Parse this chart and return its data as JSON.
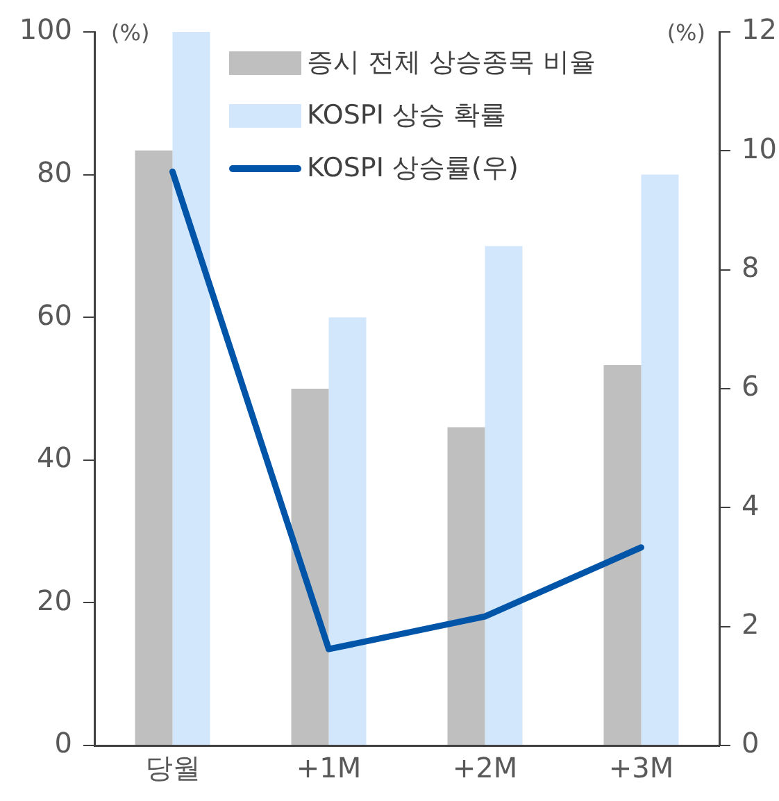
{
  "chart_data": {
    "type": "bar",
    "ylabel": "(%)",
    "y2label": "(%)",
    "categories": [
      "당월",
      "+1M",
      "+2M",
      "+3M"
    ],
    "series": [
      {
        "name": "증시 전체 상승종목 비율",
        "color": "#bfbfbf",
        "values": [
          83.4,
          50,
          44.6,
          53.3
        ]
      },
      {
        "name": "KOSPI 상승 확률",
        "color": "#d3e7fc",
        "values": [
          100,
          60,
          70,
          80
        ]
      },
      {
        "name": "KOSPI 상승률(우)",
        "type": "line",
        "axis": "y2",
        "color": "#0055a8",
        "values": [
          9.65,
          1.62,
          2.17,
          3.33
        ]
      }
    ],
    "ylim": [
      0,
      100
    ],
    "yticks": [
      0,
      20,
      40,
      60,
      80,
      100
    ],
    "y2lim": [
      0,
      12
    ],
    "y2ticks": [
      0,
      2,
      4,
      6,
      8,
      10,
      12
    ],
    "grid": false,
    "legend": "top",
    "marker": "none"
  }
}
